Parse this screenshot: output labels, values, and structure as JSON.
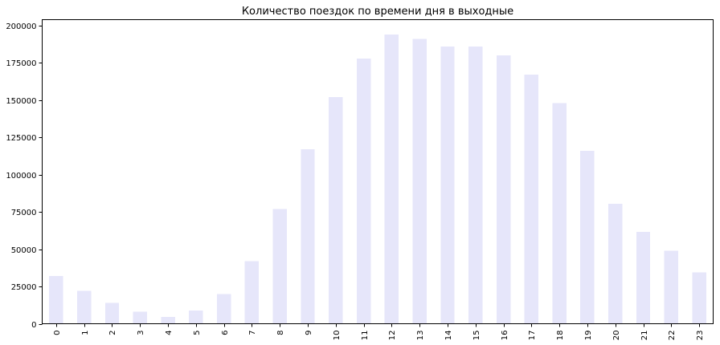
{
  "chart_data": {
    "type": "bar",
    "title": "Количество поездок по времени дня в выходные",
    "xlabel": "",
    "ylabel": "",
    "categories": [
      "0",
      "1",
      "2",
      "3",
      "4",
      "5",
      "6",
      "7",
      "8",
      "9",
      "10",
      "11",
      "12",
      "13",
      "14",
      "15",
      "16",
      "17",
      "18",
      "19",
      "20",
      "21",
      "22",
      "23"
    ],
    "values": [
      32000,
      22000,
      14000,
      8000,
      4500,
      9000,
      20000,
      42000,
      77000,
      117000,
      152000,
      178000,
      194000,
      191000,
      186000,
      186000,
      180000,
      167000,
      148000,
      116000,
      80500,
      61500,
      49000,
      34500
    ],
    "ylim": [
      0,
      204000
    ],
    "yticks": [
      0,
      25000,
      50000,
      75000,
      100000,
      125000,
      150000,
      175000,
      200000
    ],
    "ytick_labels": [
      "0",
      "25000",
      "50000",
      "75000",
      "100000",
      "125000",
      "150000",
      "175000",
      "200000"
    ],
    "bar_color": "#e6e6fa",
    "grid": false,
    "legend": "none"
  }
}
